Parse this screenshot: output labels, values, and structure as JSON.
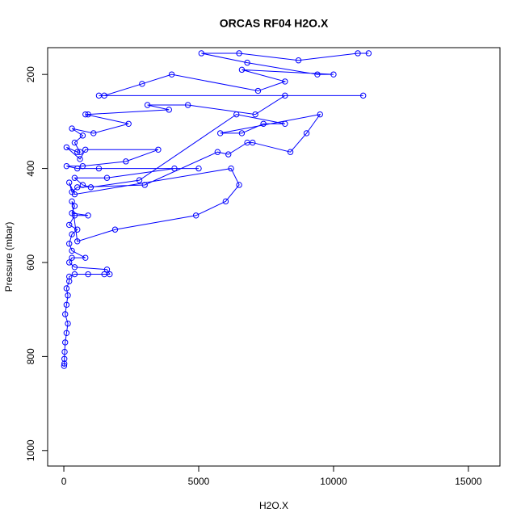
{
  "chart_data": {
    "type": "line",
    "title": "ORCAS RF04 H2O.X",
    "x_label": "H2O.X",
    "y_label": "Pressure (mbar)",
    "color": "#0000ff",
    "marker": "open-circle",
    "y_reversed": true,
    "xlim": [
      -600,
      16170
    ],
    "ylim": [
      143,
      1033
    ],
    "xticks": [
      0,
      5000,
      10000,
      15000
    ],
    "yticks": [
      200,
      400,
      600,
      800,
      1000
    ],
    "x": [
      11300,
      10900,
      8700,
      6500,
      5100,
      6800,
      9400,
      10000,
      6600,
      8200,
      7200,
      4000,
      2900,
      1500,
      1300,
      11100,
      8200,
      7100,
      4600,
      3100,
      3900,
      900,
      800,
      2400,
      1100,
      300,
      700,
      400,
      600,
      500,
      100,
      600,
      800,
      3500,
      2300,
      700,
      100,
      500,
      1300,
      5000,
      4100,
      1600,
      400,
      700,
      1000,
      2800,
      6400,
      8200,
      7400,
      6600,
      5800,
      9500,
      9000,
      8400,
      7000,
      6800,
      6100,
      5700,
      3000,
      500,
      300,
      200,
      400,
      6200,
      6500,
      6000,
      4900,
      1900,
      500,
      300,
      400,
      300,
      900,
      400,
      200,
      500,
      300,
      200,
      300,
      800,
      300,
      200,
      400,
      1600,
      1700,
      1500,
      900,
      400,
      200,
      200,
      100,
      150,
      100,
      50,
      150,
      100,
      50,
      30,
      20,
      20,
      10
    ],
    "values": [
      155,
      155,
      170,
      155,
      155,
      175,
      200,
      200,
      190,
      215,
      235,
      200,
      220,
      245,
      245,
      245,
      245,
      285,
      265,
      265,
      275,
      285,
      285,
      305,
      325,
      315,
      330,
      345,
      365,
      365,
      355,
      380,
      360,
      360,
      385,
      395,
      395,
      400,
      400,
      400,
      400,
      420,
      420,
      435,
      440,
      425,
      285,
      305,
      305,
      325,
      325,
      285,
      325,
      365,
      345,
      345,
      370,
      365,
      435,
      440,
      450,
      430,
      455,
      400,
      435,
      470,
      500,
      530,
      555,
      470,
      480,
      495,
      500,
      500,
      520,
      530,
      540,
      560,
      575,
      590,
      590,
      600,
      610,
      615,
      625,
      625,
      625,
      625,
      630,
      640,
      655,
      670,
      690,
      710,
      730,
      750,
      770,
      790,
      805,
      815,
      820
    ]
  }
}
